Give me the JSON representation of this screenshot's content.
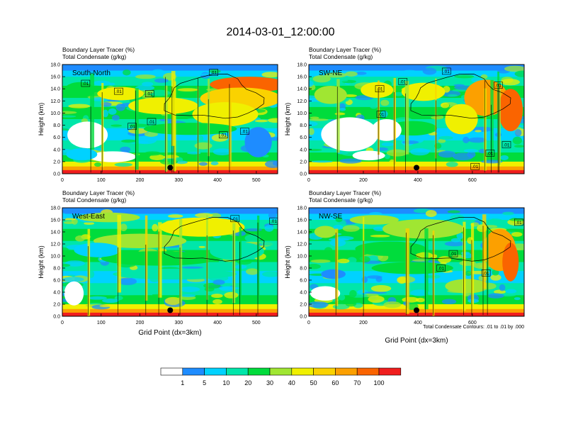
{
  "title": "2014-03-01_12:00:00",
  "chart_data": {
    "type": "heatmap",
    "colorbar": {
      "levels": [
        "1",
        "5",
        "10",
        "20",
        "30",
        "40",
        "50",
        "60",
        "70",
        "100"
      ],
      "colors": [
        "#ffffff",
        "#1e8cff",
        "#00d2ff",
        "#00e6aa",
        "#00dc3c",
        "#a0e632",
        "#f0f000",
        "#fad200",
        "#fca000",
        "#fa6400",
        "#f01e1e"
      ]
    },
    "contour_note": "Total Condensate Contours: .01 to .01 by .000",
    "panels": [
      {
        "id": "south-north",
        "label": "South-North",
        "title_line1": "Boundary Layer Tracer   (%)",
        "title_line2": "Total Condensate   (g/kg)",
        "ylabel": "Height (km)",
        "xlabel": "",
        "xlim": [
          0,
          555
        ],
        "ylim": [
          0,
          18
        ],
        "xticks": [
          0,
          100,
          200,
          300,
          400,
          500
        ],
        "xtick_labels": [
          "0",
          "100",
          "200",
          "300",
          "400",
          "500"
        ],
        "yticks": [
          0,
          2,
          4,
          6,
          8,
          10,
          12,
          14,
          16,
          18
        ],
        "ytick_labels": [
          "0.0",
          "2.0",
          "4.0",
          "6.0",
          "8.0",
          "10.0",
          "12.0",
          "14.0",
          "16.0",
          "18.0"
        ],
        "marker": {
          "x": 278,
          "y": 1.0
        },
        "contour_labels": [
          {
            "text": ".01",
            "x": 60,
            "y": 14.9
          },
          {
            "text": ".01",
            "x": 145,
            "y": 13.6
          },
          {
            "text": ".01",
            "x": 225,
            "y": 13.2
          },
          {
            "text": ".01",
            "x": 390,
            "y": 16.7
          },
          {
            "text": ".01",
            "x": 180,
            "y": 7.8
          },
          {
            "text": ".01",
            "x": 230,
            "y": 8.6
          },
          {
            "text": ".01",
            "x": 415,
            "y": 6.4
          },
          {
            "text": ".01",
            "x": 470,
            "y": 7.0
          }
        ],
        "blobs": [
          {
            "cx": 480,
            "cy": 14.7,
            "rx": 100,
            "ry": 1.3,
            "level": 9
          },
          {
            "cx": 460,
            "cy": 12.4,
            "rx": 105,
            "ry": 1.8,
            "level": 7
          },
          {
            "cx": 420,
            "cy": 9.8,
            "rx": 85,
            "ry": 2.0,
            "level": 6
          },
          {
            "cx": 260,
            "cy": 11.2,
            "rx": 90,
            "ry": 1.4,
            "level": 6
          },
          {
            "cx": 150,
            "cy": 13.2,
            "rx": 60,
            "ry": 1.1,
            "level": 6
          },
          {
            "cx": 330,
            "cy": 7.4,
            "rx": 120,
            "ry": 1.0,
            "level": 4
          },
          {
            "cx": 45,
            "cy": 13.8,
            "rx": 40,
            "ry": 1.3,
            "level": 4
          },
          {
            "cx": 65,
            "cy": 6.4,
            "rx": 52,
            "ry": 2.2,
            "level": 0
          },
          {
            "cx": 130,
            "cy": 2.8,
            "rx": 60,
            "ry": 0.9,
            "level": 0
          },
          {
            "cx": 505,
            "cy": 5.2,
            "rx": 35,
            "ry": 2.5,
            "level": 1
          },
          {
            "cx": 50,
            "cy": 3.2,
            "rx": 40,
            "ry": 1.0,
            "level": 2
          }
        ]
      },
      {
        "id": "sw-ne",
        "label": "SW-NE",
        "title_line1": "Boundary Layer Tracer   (%)",
        "title_line2": "Total Condensate   (g/kg)",
        "ylabel": "Height (km)",
        "xlabel": "",
        "xlim": [
          0,
          790
        ],
        "ylim": [
          0,
          18
        ],
        "xticks": [
          0,
          200,
          400,
          600
        ],
        "xtick_labels": [
          "0",
          "200",
          "400",
          "600"
        ],
        "yticks": [
          0,
          2,
          4,
          6,
          8,
          10,
          12,
          14,
          16,
          18
        ],
        "ytick_labels": [
          "0.0",
          "2.0",
          "4.0",
          "6.0",
          "8.0",
          "10.0",
          "12.0",
          "14.0",
          "16.0",
          "18.0"
        ],
        "marker": {
          "x": 395,
          "y": 1.0
        },
        "contour_labels": [
          {
            "text": ".01",
            "x": 260,
            "y": 14.0
          },
          {
            "text": ".01",
            "x": 345,
            "y": 15.2
          },
          {
            "text": ".01",
            "x": 505,
            "y": 16.9
          },
          {
            "text": ".01",
            "x": 695,
            "y": 14.6
          },
          {
            "text": ".01",
            "x": 265,
            "y": 9.8
          },
          {
            "text": ".01",
            "x": 665,
            "y": 3.4
          },
          {
            "text": ".01",
            "x": 725,
            "y": 4.8
          },
          {
            "text": ".01",
            "x": 610,
            "y": 1.2
          }
        ],
        "blobs": [
          {
            "cx": 650,
            "cy": 12.5,
            "rx": 80,
            "ry": 3.0,
            "level": 8
          },
          {
            "cx": 740,
            "cy": 10.5,
            "rx": 45,
            "ry": 3.5,
            "level": 9
          },
          {
            "cx": 560,
            "cy": 9.0,
            "rx": 60,
            "ry": 2.5,
            "level": 6
          },
          {
            "cx": 420,
            "cy": 13.5,
            "rx": 80,
            "ry": 1.5,
            "level": 6
          },
          {
            "cx": 250,
            "cy": 13.8,
            "rx": 60,
            "ry": 1.3,
            "level": 6
          },
          {
            "cx": 380,
            "cy": 7.5,
            "rx": 90,
            "ry": 1.2,
            "level": 4
          },
          {
            "cx": 150,
            "cy": 6.5,
            "rx": 105,
            "ry": 2.8,
            "level": 0
          },
          {
            "cx": 285,
            "cy": 7.2,
            "rx": 55,
            "ry": 1.8,
            "level": 0
          },
          {
            "cx": 220,
            "cy": 3.0,
            "rx": 60,
            "ry": 0.8,
            "level": 0
          },
          {
            "cx": 80,
            "cy": 13.0,
            "rx": 60,
            "ry": 1.5,
            "level": 5
          }
        ]
      },
      {
        "id": "west-east",
        "label": "West-East",
        "title_line1": "Boundary Layer Tracer   (%)",
        "title_line2": "Total Condensate   (g/kg)",
        "ylabel": "Height (km)",
        "xlabel": "Grid Point (dx=3km)",
        "xlim": [
          0,
          555
        ],
        "ylim": [
          0,
          18
        ],
        "xticks": [
          0,
          100,
          200,
          300,
          400,
          500
        ],
        "xtick_labels": [
          "0",
          "100",
          "200",
          "300",
          "400",
          "500"
        ],
        "yticks": [
          0,
          2,
          4,
          6,
          8,
          10,
          12,
          14,
          16,
          18
        ],
        "ytick_labels": [
          "0.0",
          "2.0",
          "4.0",
          "6.0",
          "8.0",
          "10.0",
          "12.0",
          "14.0",
          "16.0",
          "18.0"
        ],
        "marker": {
          "x": 278,
          "y": 1.0
        },
        "contour_labels": [
          {
            "text": ".01",
            "x": 445,
            "y": 16.2
          },
          {
            "text": ".01",
            "x": 545,
            "y": 15.8
          }
        ],
        "blobs": [
          {
            "cx": 360,
            "cy": 14.8,
            "rx": 110,
            "ry": 1.6,
            "level": 6
          },
          {
            "cx": 200,
            "cy": 12.5,
            "rx": 120,
            "ry": 1.2,
            "level": 5
          },
          {
            "cx": 250,
            "cy": 9.6,
            "rx": 150,
            "ry": 1.2,
            "level": 4
          },
          {
            "cx": 290,
            "cy": 7.0,
            "rx": 160,
            "ry": 0.9,
            "level": 3
          },
          {
            "cx": 150,
            "cy": 4.2,
            "rx": 140,
            "ry": 0.7,
            "level": 3
          },
          {
            "cx": 30,
            "cy": 3.8,
            "rx": 25,
            "ry": 2.0,
            "level": 0
          },
          {
            "cx": 90,
            "cy": 11.0,
            "rx": 60,
            "ry": 1.2,
            "level": 2
          },
          {
            "cx": 450,
            "cy": 10.8,
            "rx": 70,
            "ry": 1.5,
            "level": 3
          },
          {
            "cx": 120,
            "cy": 16.4,
            "rx": 80,
            "ry": 0.8,
            "level": 5
          }
        ]
      },
      {
        "id": "nw-se",
        "label": "NW-SE",
        "title_line1": "Boundary Layer Tracer   (%)",
        "title_line2": "Total Condensate   (g/kg)",
        "ylabel": "Height (km)",
        "xlabel": "Grid Point (dx=3km)",
        "xlim": [
          0,
          790
        ],
        "ylim": [
          0,
          18
        ],
        "xticks": [
          0,
          200,
          400,
          600
        ],
        "xtick_labels": [
          "0",
          "200",
          "400",
          "600"
        ],
        "yticks": [
          0,
          2,
          4,
          6,
          8,
          10,
          12,
          14,
          16,
          18
        ],
        "ytick_labels": [
          "0.0",
          "2.0",
          "4.0",
          "6.0",
          "8.0",
          "10.0",
          "12.0",
          "14.0",
          "16.0",
          "18.0"
        ],
        "marker": {
          "x": 395,
          "y": 1.0
        },
        "contour_labels": [
          {
            "text": ".01",
            "x": 530,
            "y": 10.4
          },
          {
            "text": ".01",
            "x": 485,
            "y": 8.0
          },
          {
            "text": ".01",
            "x": 650,
            "y": 7.2
          },
          {
            "text": ".01",
            "x": 770,
            "y": 15.6
          }
        ],
        "blobs": [
          {
            "cx": 700,
            "cy": 11.0,
            "rx": 60,
            "ry": 3.5,
            "level": 8
          },
          {
            "cx": 740,
            "cy": 9.0,
            "rx": 30,
            "ry": 3.2,
            "level": 9
          },
          {
            "cx": 420,
            "cy": 14.5,
            "rx": 150,
            "ry": 1.6,
            "level": 5
          },
          {
            "cx": 300,
            "cy": 11.2,
            "rx": 130,
            "ry": 1.2,
            "level": 4
          },
          {
            "cx": 380,
            "cy": 8.0,
            "rx": 150,
            "ry": 1.0,
            "level": 4
          },
          {
            "cx": 580,
            "cy": 5.0,
            "rx": 80,
            "ry": 1.2,
            "level": 5
          },
          {
            "cx": 60,
            "cy": 3.8,
            "rx": 55,
            "ry": 1.2,
            "level": 0
          },
          {
            "cx": 90,
            "cy": 7.0,
            "rx": 45,
            "ry": 0.8,
            "level": 1
          },
          {
            "cx": 60,
            "cy": 14.0,
            "rx": 40,
            "ry": 1.0,
            "level": 5
          },
          {
            "cx": 240,
            "cy": 16.0,
            "rx": 90,
            "ry": 0.8,
            "level": 5
          }
        ]
      }
    ]
  }
}
